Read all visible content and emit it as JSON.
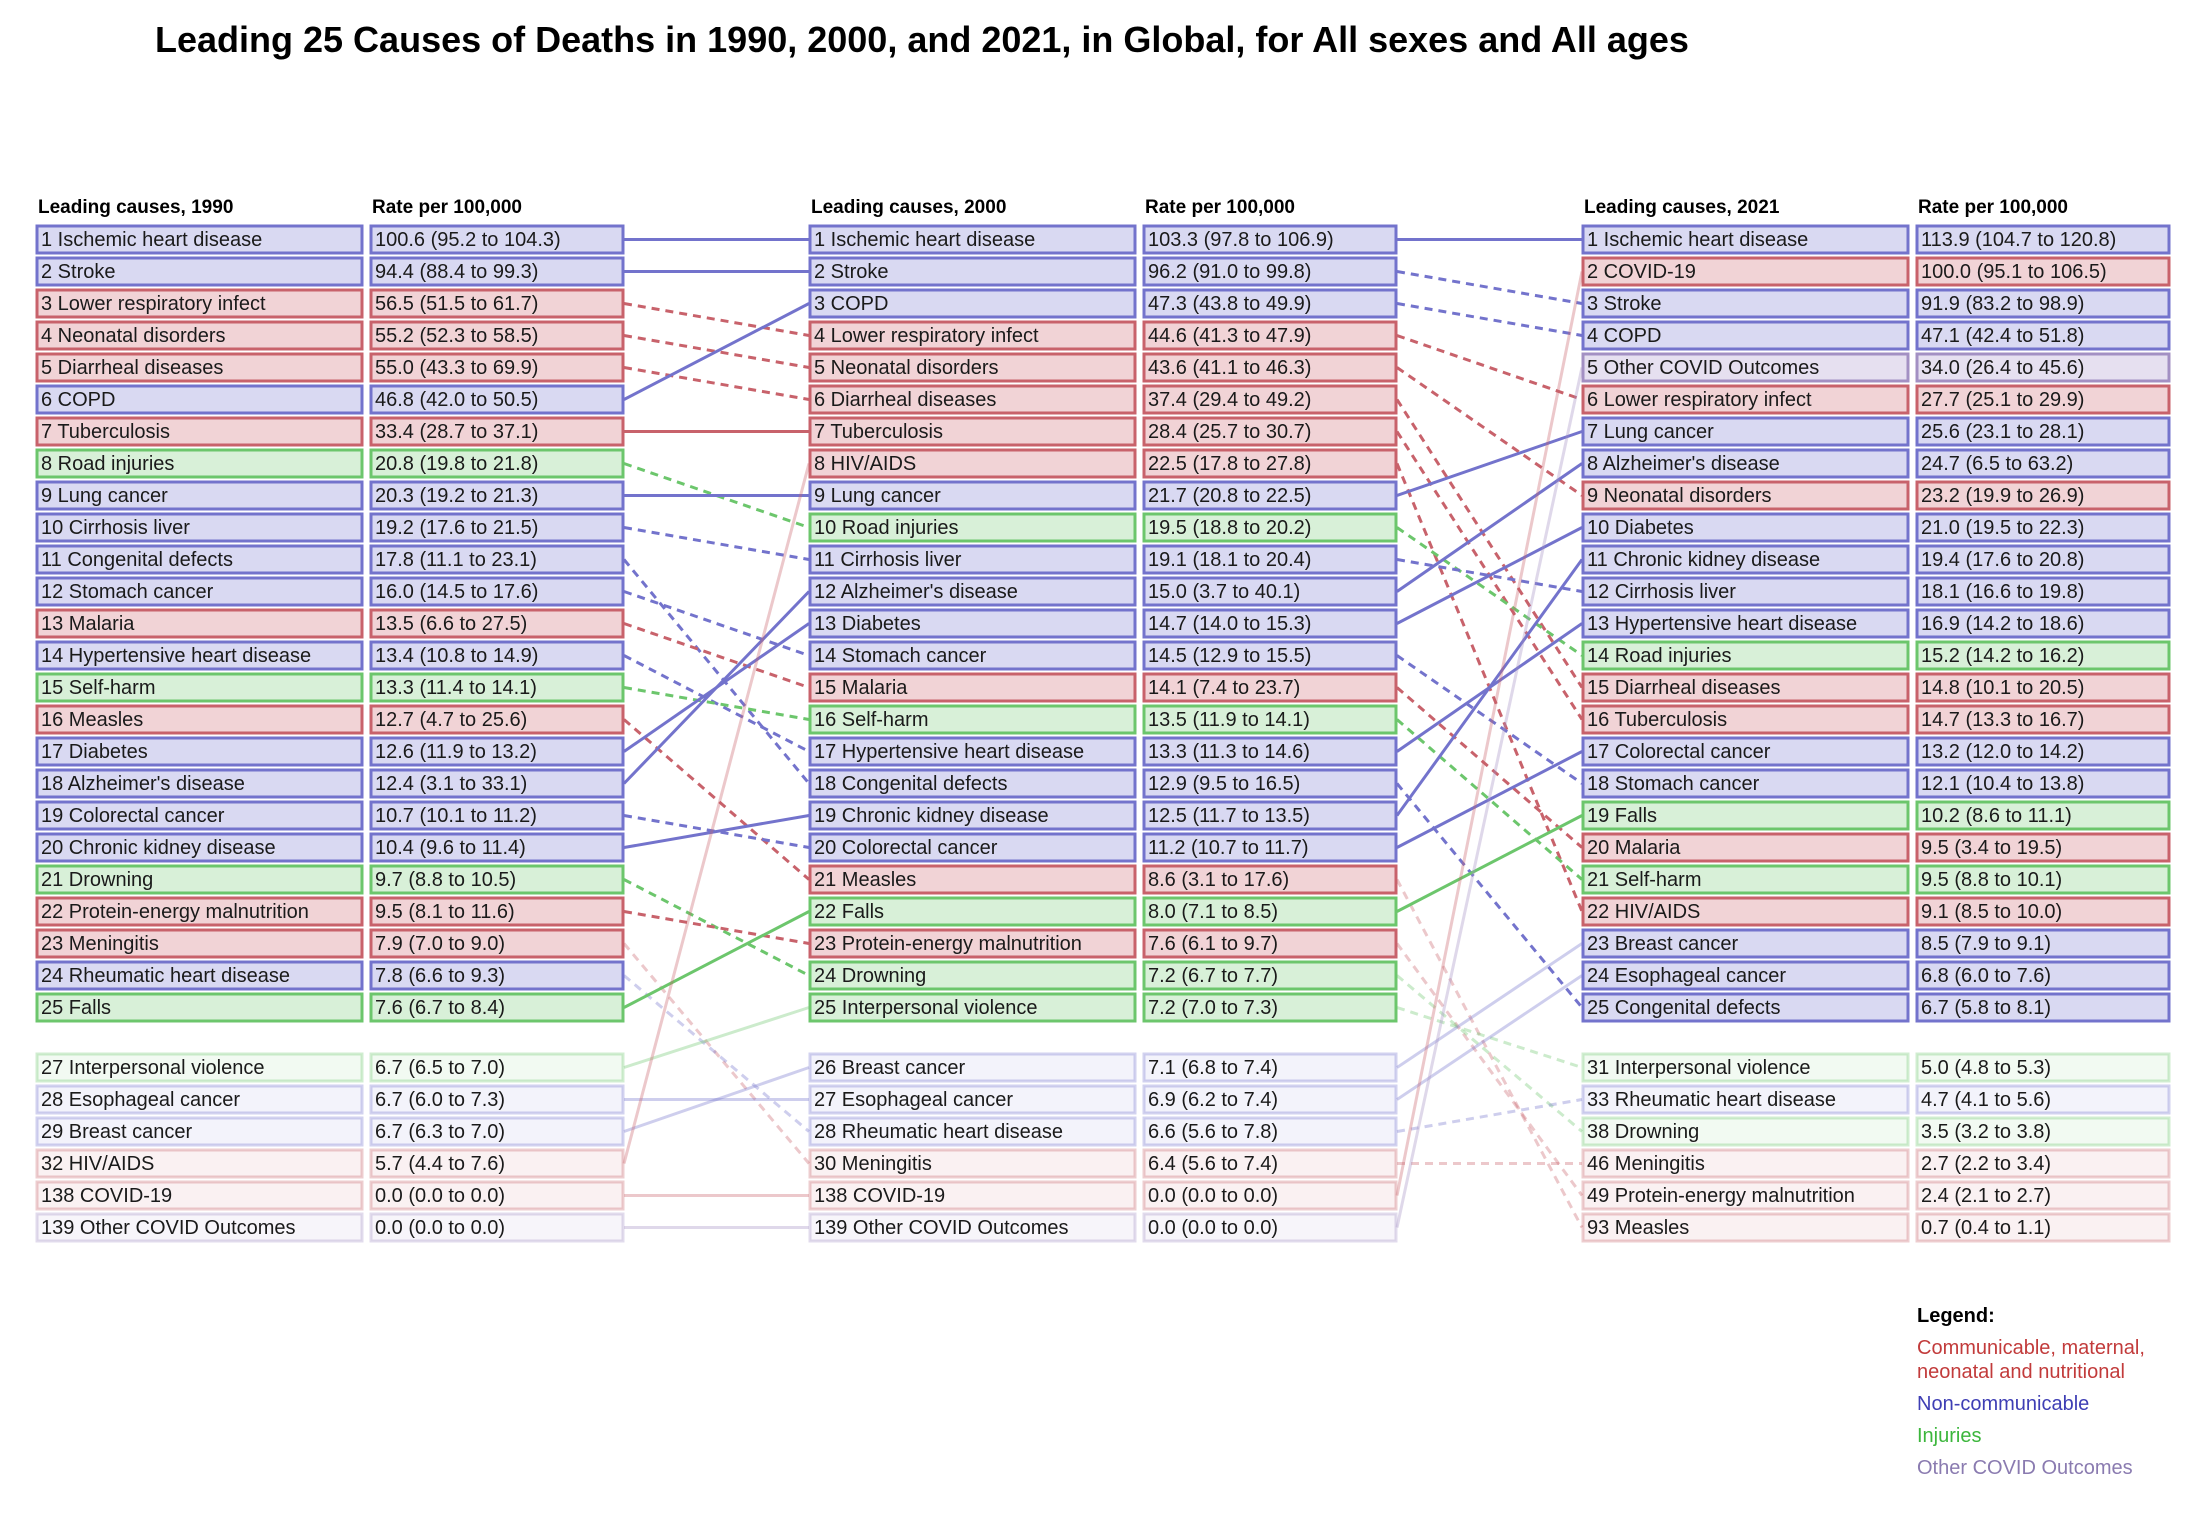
{
  "chart_data": {
    "type": "table",
    "title": "Leading 25 Causes of Deaths in 1990, 2000, and 2021, in Global, for All sexes and All ages",
    "columns": [
      {
        "year": "1990",
        "cause_header": "Leading causes, 1990",
        "rate_header": "Rate per 100,000",
        "rows": [
          {
            "rank": 1,
            "label": "1 Ischemic heart disease",
            "rate": "100.6 (95.2 to 104.3)",
            "cat": "ncd"
          },
          {
            "rank": 2,
            "label": "2 Stroke",
            "rate": "94.4 (88.4 to 99.3)",
            "cat": "ncd"
          },
          {
            "rank": 3,
            "label": "3 Lower respiratory infect",
            "rate": "56.5 (51.5 to 61.7)",
            "cat": "cmnn"
          },
          {
            "rank": 4,
            "label": "4 Neonatal disorders",
            "rate": "55.2 (52.3 to 58.5)",
            "cat": "cmnn"
          },
          {
            "rank": 5,
            "label": "5 Diarrheal diseases",
            "rate": "55.0 (43.3 to 69.9)",
            "cat": "cmnn"
          },
          {
            "rank": 6,
            "label": "6 COPD",
            "rate": "46.8 (42.0 to 50.5)",
            "cat": "ncd"
          },
          {
            "rank": 7,
            "label": "7 Tuberculosis",
            "rate": "33.4 (28.7 to 37.1)",
            "cat": "cmnn"
          },
          {
            "rank": 8,
            "label": "8 Road injuries",
            "rate": "20.8 (19.8 to 21.8)",
            "cat": "inj"
          },
          {
            "rank": 9,
            "label": "9 Lung cancer",
            "rate": "20.3 (19.2 to 21.3)",
            "cat": "ncd"
          },
          {
            "rank": 10,
            "label": "10 Cirrhosis liver",
            "rate": "19.2 (17.6 to 21.5)",
            "cat": "ncd"
          },
          {
            "rank": 11,
            "label": "11 Congenital defects",
            "rate": "17.8 (11.1 to 23.1)",
            "cat": "ncd"
          },
          {
            "rank": 12,
            "label": "12 Stomach cancer",
            "rate": "16.0 (14.5 to 17.6)",
            "cat": "ncd"
          },
          {
            "rank": 13,
            "label": "13 Malaria",
            "rate": "13.5 (6.6 to 27.5)",
            "cat": "cmnn"
          },
          {
            "rank": 14,
            "label": "14 Hypertensive heart disease",
            "rate": "13.4 (10.8 to 14.9)",
            "cat": "ncd"
          },
          {
            "rank": 15,
            "label": "15 Self-harm",
            "rate": "13.3 (11.4 to 14.1)",
            "cat": "inj"
          },
          {
            "rank": 16,
            "label": "16 Measles",
            "rate": "12.7 (4.7 to 25.6)",
            "cat": "cmnn"
          },
          {
            "rank": 17,
            "label": "17 Diabetes",
            "rate": "12.6 (11.9 to 13.2)",
            "cat": "ncd"
          },
          {
            "rank": 18,
            "label": "18 Alzheimer's disease",
            "rate": "12.4 (3.1 to 33.1)",
            "cat": "ncd"
          },
          {
            "rank": 19,
            "label": "19 Colorectal cancer",
            "rate": "10.7 (10.1 to 11.2)",
            "cat": "ncd"
          },
          {
            "rank": 20,
            "label": "20 Chronic kidney disease",
            "rate": "10.4 (9.6 to 11.4)",
            "cat": "ncd"
          },
          {
            "rank": 21,
            "label": "21 Drowning",
            "rate": "9.7 (8.8 to 10.5)",
            "cat": "inj"
          },
          {
            "rank": 22,
            "label": "22 Protein-energy malnutrition",
            "rate": "9.5 (8.1 to 11.6)",
            "cat": "cmnn"
          },
          {
            "rank": 23,
            "label": "23 Meningitis",
            "rate": "7.9 (7.0 to 9.0)",
            "cat": "cmnn"
          },
          {
            "rank": 24,
            "label": "24 Rheumatic heart disease",
            "rate": "7.8 (6.6 to 9.3)",
            "cat": "ncd"
          },
          {
            "rank": 25,
            "label": "25 Falls",
            "rate": "7.6 (6.7 to 8.4)",
            "cat": "inj"
          },
          {
            "rank": 27,
            "label": "27 Interpersonal violence",
            "rate": "6.7 (6.5 to 7.0)",
            "cat": "inj",
            "faded": true
          },
          {
            "rank": 28,
            "label": "28 Esophageal cancer",
            "rate": "6.7 (6.0 to 7.3)",
            "cat": "ncd",
            "faded": true
          },
          {
            "rank": 29,
            "label": "29 Breast cancer",
            "rate": "6.7 (6.3 to 7.0)",
            "cat": "ncd",
            "faded": true
          },
          {
            "rank": 32,
            "label": "32 HIV/AIDS",
            "rate": "5.7 (4.4 to 7.6)",
            "cat": "cmnn",
            "faded": true
          },
          {
            "rank": 138,
            "label": "138 COVID-19",
            "rate": "0.0 (0.0 to 0.0)",
            "cat": "cmnn",
            "faded": true
          },
          {
            "rank": 139,
            "label": "139 Other COVID Outcomes",
            "rate": "0.0 (0.0 to 0.0)",
            "cat": "covid",
            "faded": true
          }
        ]
      },
      {
        "year": "2000",
        "cause_header": "Leading causes, 2000",
        "rate_header": "Rate per 100,000",
        "rows": [
          {
            "rank": 1,
            "label": "1 Ischemic heart disease",
            "rate": "103.3 (97.8 to 106.9)",
            "cat": "ncd"
          },
          {
            "rank": 2,
            "label": "2 Stroke",
            "rate": "96.2 (91.0 to 99.8)",
            "cat": "ncd"
          },
          {
            "rank": 3,
            "label": "3 COPD",
            "rate": "47.3 (43.8 to 49.9)",
            "cat": "ncd"
          },
          {
            "rank": 4,
            "label": "4 Lower respiratory infect",
            "rate": "44.6 (41.3 to 47.9)",
            "cat": "cmnn"
          },
          {
            "rank": 5,
            "label": "5 Neonatal disorders",
            "rate": "43.6 (41.1 to 46.3)",
            "cat": "cmnn"
          },
          {
            "rank": 6,
            "label": "6 Diarrheal diseases",
            "rate": "37.4 (29.4 to 49.2)",
            "cat": "cmnn"
          },
          {
            "rank": 7,
            "label": "7 Tuberculosis",
            "rate": "28.4 (25.7 to 30.7)",
            "cat": "cmnn"
          },
          {
            "rank": 8,
            "label": "8 HIV/AIDS",
            "rate": "22.5 (17.8 to 27.8)",
            "cat": "cmnn"
          },
          {
            "rank": 9,
            "label": "9 Lung cancer",
            "rate": "21.7 (20.8 to 22.5)",
            "cat": "ncd"
          },
          {
            "rank": 10,
            "label": "10 Road injuries",
            "rate": "19.5 (18.8 to 20.2)",
            "cat": "inj"
          },
          {
            "rank": 11,
            "label": "11 Cirrhosis liver",
            "rate": "19.1 (18.1 to 20.4)",
            "cat": "ncd"
          },
          {
            "rank": 12,
            "label": "12 Alzheimer's disease",
            "rate": "15.0 (3.7 to 40.1)",
            "cat": "ncd"
          },
          {
            "rank": 13,
            "label": "13 Diabetes",
            "rate": "14.7 (14.0 to 15.3)",
            "cat": "ncd"
          },
          {
            "rank": 14,
            "label": "14 Stomach cancer",
            "rate": "14.5 (12.9 to 15.5)",
            "cat": "ncd"
          },
          {
            "rank": 15,
            "label": "15 Malaria",
            "rate": "14.1 (7.4 to 23.7)",
            "cat": "cmnn"
          },
          {
            "rank": 16,
            "label": "16 Self-harm",
            "rate": "13.5 (11.9 to 14.1)",
            "cat": "inj"
          },
          {
            "rank": 17,
            "label": "17 Hypertensive heart disease",
            "rate": "13.3 (11.3 to 14.6)",
            "cat": "ncd"
          },
          {
            "rank": 18,
            "label": "18 Congenital defects",
            "rate": "12.9 (9.5 to 16.5)",
            "cat": "ncd"
          },
          {
            "rank": 19,
            "label": "19 Chronic kidney disease",
            "rate": "12.5 (11.7 to 13.5)",
            "cat": "ncd"
          },
          {
            "rank": 20,
            "label": "20 Colorectal cancer",
            "rate": "11.2 (10.7 to 11.7)",
            "cat": "ncd"
          },
          {
            "rank": 21,
            "label": "21 Measles",
            "rate": "8.6 (3.1 to 17.6)",
            "cat": "cmnn"
          },
          {
            "rank": 22,
            "label": "22 Falls",
            "rate": "8.0 (7.1 to 8.5)",
            "cat": "inj"
          },
          {
            "rank": 23,
            "label": "23 Protein-energy malnutrition",
            "rate": "7.6 (6.1 to 9.7)",
            "cat": "cmnn"
          },
          {
            "rank": 24,
            "label": "24 Drowning",
            "rate": "7.2 (6.7 to 7.7)",
            "cat": "inj"
          },
          {
            "rank": 25,
            "label": "25 Interpersonal violence",
            "rate": "7.2 (7.0 to 7.3)",
            "cat": "inj"
          },
          {
            "rank": 26,
            "label": "26 Breast cancer",
            "rate": "7.1 (6.8 to 7.4)",
            "cat": "ncd",
            "faded": true
          },
          {
            "rank": 27,
            "label": "27 Esophageal cancer",
            "rate": "6.9 (6.2 to 7.4)",
            "cat": "ncd",
            "faded": true
          },
          {
            "rank": 28,
            "label": "28 Rheumatic heart disease",
            "rate": "6.6 (5.6 to 7.8)",
            "cat": "ncd",
            "faded": true
          },
          {
            "rank": 30,
            "label": "30 Meningitis",
            "rate": "6.4 (5.6 to 7.4)",
            "cat": "cmnn",
            "faded": true
          },
          {
            "rank": 138,
            "label": "138 COVID-19",
            "rate": "0.0 (0.0 to 0.0)",
            "cat": "cmnn",
            "faded": true
          },
          {
            "rank": 139,
            "label": "139 Other COVID Outcomes",
            "rate": "0.0 (0.0 to 0.0)",
            "cat": "covid",
            "faded": true
          }
        ]
      },
      {
        "year": "2021",
        "cause_header": "Leading causes, 2021",
        "rate_header": "Rate per 100,000",
        "rows": [
          {
            "rank": 1,
            "label": "1 Ischemic heart disease",
            "rate": "113.9 (104.7 to 120.8)",
            "cat": "ncd"
          },
          {
            "rank": 2,
            "label": "2 COVID-19",
            "rate": "100.0 (95.1 to 106.5)",
            "cat": "cmnn"
          },
          {
            "rank": 3,
            "label": "3 Stroke",
            "rate": "91.9 (83.2 to 98.9)",
            "cat": "ncd"
          },
          {
            "rank": 4,
            "label": "4 COPD",
            "rate": "47.1 (42.4 to 51.8)",
            "cat": "ncd"
          },
          {
            "rank": 5,
            "label": "5 Other COVID Outcomes",
            "rate": "34.0 (26.4 to 45.6)",
            "cat": "covid"
          },
          {
            "rank": 6,
            "label": "6 Lower respiratory infect",
            "rate": "27.7 (25.1 to 29.9)",
            "cat": "cmnn"
          },
          {
            "rank": 7,
            "label": "7 Lung cancer",
            "rate": "25.6 (23.1 to 28.1)",
            "cat": "ncd"
          },
          {
            "rank": 8,
            "label": "8 Alzheimer's disease",
            "rate": "24.7 (6.5 to 63.2)",
            "cat": "ncd"
          },
          {
            "rank": 9,
            "label": "9 Neonatal disorders",
            "rate": "23.2 (19.9 to 26.9)",
            "cat": "cmnn"
          },
          {
            "rank": 10,
            "label": "10 Diabetes",
            "rate": "21.0 (19.5 to 22.3)",
            "cat": "ncd"
          },
          {
            "rank": 11,
            "label": "11 Chronic kidney disease",
            "rate": "19.4 (17.6 to 20.8)",
            "cat": "ncd"
          },
          {
            "rank": 12,
            "label": "12 Cirrhosis liver",
            "rate": "18.1 (16.6 to 19.8)",
            "cat": "ncd"
          },
          {
            "rank": 13,
            "label": "13 Hypertensive heart disease",
            "rate": "16.9 (14.2 to 18.6)",
            "cat": "ncd"
          },
          {
            "rank": 14,
            "label": "14 Road injuries",
            "rate": "15.2 (14.2 to 16.2)",
            "cat": "inj"
          },
          {
            "rank": 15,
            "label": "15 Diarrheal diseases",
            "rate": "14.8 (10.1 to 20.5)",
            "cat": "cmnn"
          },
          {
            "rank": 16,
            "label": "16 Tuberculosis",
            "rate": "14.7 (13.3 to 16.7)",
            "cat": "cmnn"
          },
          {
            "rank": 17,
            "label": "17 Colorectal cancer",
            "rate": "13.2 (12.0 to 14.2)",
            "cat": "ncd"
          },
          {
            "rank": 18,
            "label": "18 Stomach cancer",
            "rate": "12.1 (10.4 to 13.8)",
            "cat": "ncd"
          },
          {
            "rank": 19,
            "label": "19 Falls",
            "rate": "10.2 (8.6 to 11.1)",
            "cat": "inj"
          },
          {
            "rank": 20,
            "label": "20 Malaria",
            "rate": "9.5 (3.4 to 19.5)",
            "cat": "cmnn"
          },
          {
            "rank": 21,
            "label": "21 Self-harm",
            "rate": "9.5 (8.8 to 10.1)",
            "cat": "inj"
          },
          {
            "rank": 22,
            "label": "22 HIV/AIDS",
            "rate": "9.1 (8.5 to 10.0)",
            "cat": "cmnn"
          },
          {
            "rank": 23,
            "label": "23 Breast cancer",
            "rate": "8.5 (7.9 to 9.1)",
            "cat": "ncd"
          },
          {
            "rank": 24,
            "label": "24 Esophageal cancer",
            "rate": "6.8 (6.0 to 7.6)",
            "cat": "ncd"
          },
          {
            "rank": 25,
            "label": "25 Congenital defects",
            "rate": "6.7 (5.8 to 8.1)",
            "cat": "ncd"
          },
          {
            "rank": 31,
            "label": "31 Interpersonal violence",
            "rate": "5.0 (4.8 to 5.3)",
            "cat": "inj",
            "faded": true
          },
          {
            "rank": 33,
            "label": "33 Rheumatic heart disease",
            "rate": "4.7 (4.1 to 5.6)",
            "cat": "ncd",
            "faded": true
          },
          {
            "rank": 38,
            "label": "38 Drowning",
            "rate": "3.5 (3.2 to 3.8)",
            "cat": "inj",
            "faded": true
          },
          {
            "rank": 46,
            "label": "46 Meningitis",
            "rate": "2.7 (2.2 to 3.4)",
            "cat": "cmnn",
            "faded": true
          },
          {
            "rank": 49,
            "label": "49 Protein-energy malnutrition",
            "rate": "2.4 (2.1 to 2.7)",
            "cat": "cmnn",
            "faded": true
          },
          {
            "rank": 93,
            "label": "93 Measles",
            "rate": "0.7 (0.4 to 1.1)",
            "cat": "cmnn",
            "faded": true
          }
        ]
      }
    ],
    "legend": {
      "title": "Legend:",
      "position": "bottom-right",
      "items": [
        {
          "key": "cmnn",
          "lines": [
            "Communicable, maternal,",
            "neonatal and nutritional"
          ]
        },
        {
          "key": "ncd",
          "lines": [
            "Non-communicable"
          ]
        },
        {
          "key": "inj",
          "lines": [
            "Injuries"
          ]
        },
        {
          "key": "covid",
          "lines": [
            "Other COVID Outcomes"
          ]
        }
      ]
    },
    "colors": {
      "cmnn": {
        "stroke": "#c8626b",
        "fill": "#f1d3d6",
        "text": "#c23b3b"
      },
      "ncd": {
        "stroke": "#7373cc",
        "fill": "#d9d9f2",
        "text": "#3e3eb4"
      },
      "inj": {
        "stroke": "#6cc66c",
        "fill": "#d8f0d8",
        "text": "#3cb63c"
      },
      "covid": {
        "stroke": "#a390c3",
        "fill": "#e6e0f0",
        "text": "#8a7bb0"
      }
    }
  }
}
